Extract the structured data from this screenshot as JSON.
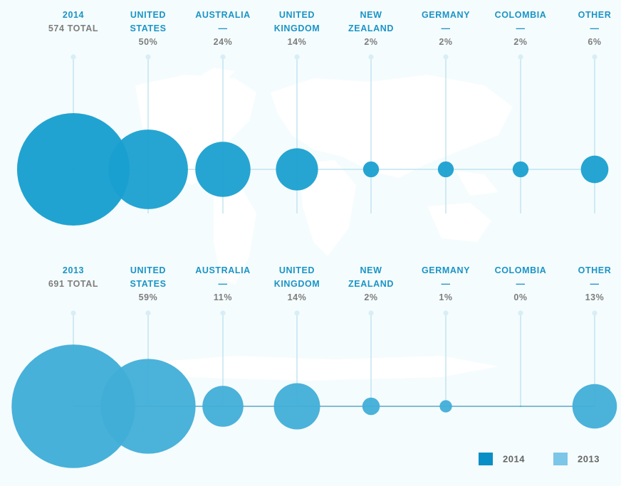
{
  "colors": {
    "y2014": "#1aa0d0",
    "y2013": "#41aed8",
    "legend_2014": "#0a8ec6",
    "legend_2013": "#7cc6e8",
    "axis": "#bfe3f0",
    "dot_small_2013": "#1ab8c8"
  },
  "chart_data": {
    "type": "bubble",
    "groups": [
      {
        "year": "2014",
        "year_label": "2014",
        "total_label": "574 TOTAL",
        "total": 574,
        "color_key": "y2014",
        "categories": [
          {
            "name": "UNITED\nSTATES",
            "pct_label": "50%",
            "value": 50
          },
          {
            "name": "AUSTRALIA\n—",
            "pct_label": "24%",
            "value": 24
          },
          {
            "name": "UNITED\nKINGDOM",
            "pct_label": "14%",
            "value": 14
          },
          {
            "name": "NEW\nZEALAND",
            "pct_label": "2%",
            "value": 2
          },
          {
            "name": "GERMANY\n—",
            "pct_label": "2%",
            "value": 2
          },
          {
            "name": "COLOMBIA\n—",
            "pct_label": "2%",
            "value": 2
          },
          {
            "name": "OTHER\n—",
            "pct_label": "6%",
            "value": 6
          }
        ]
      },
      {
        "year": "2013",
        "year_label": "2013",
        "total_label": "691 TOTAL",
        "total": 691,
        "color_key": "y2013",
        "categories": [
          {
            "name": "UNITED\nSTATES",
            "pct_label": "59%",
            "value": 59
          },
          {
            "name": "AUSTRALIA\n—",
            "pct_label": "11%",
            "value": 11
          },
          {
            "name": "UNITED\nKINGDOM",
            "pct_label": "14%",
            "value": 14
          },
          {
            "name": "NEW\nZEALAND",
            "pct_label": "2%",
            "value": 2
          },
          {
            "name": "GERMANY\n—",
            "pct_label": "1%",
            "value": 1
          },
          {
            "name": "COLOMBIA\n—",
            "pct_label": "0%",
            "value": 0
          },
          {
            "name": "OTHER\n—",
            "pct_label": "13%",
            "value": 13
          }
        ]
      }
    ],
    "legend": [
      {
        "label": "2014",
        "color_key": "legend_2014"
      },
      {
        "label": "2013",
        "color_key": "legend_2013"
      }
    ],
    "legend_position": "bottom-right"
  }
}
